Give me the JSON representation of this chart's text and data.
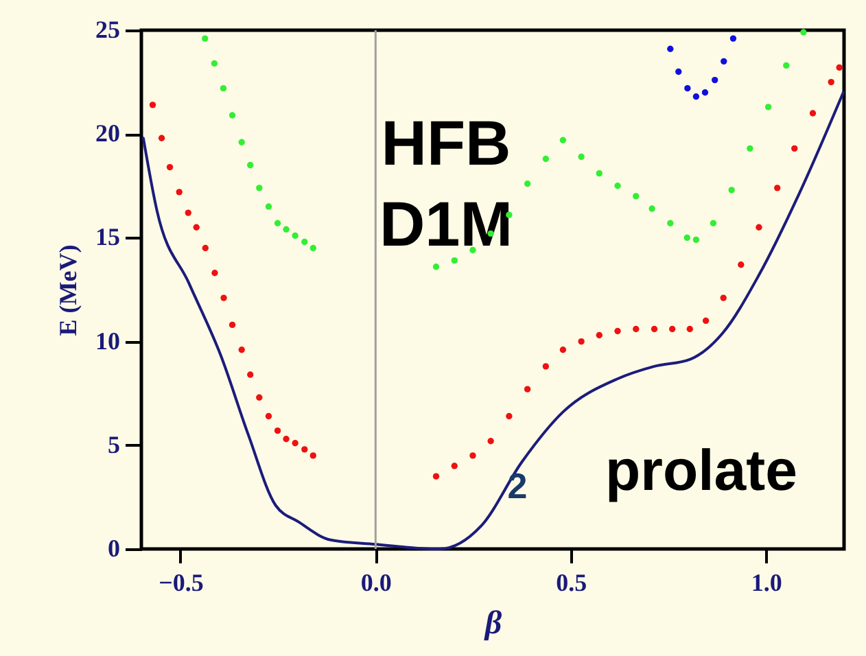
{
  "chart_data": {
    "type": "line",
    "xlabel": "β",
    "ylabel": "E (MeV)",
    "xlim": [
      -0.6,
      1.2
    ],
    "ylim": [
      0,
      25
    ],
    "xticks": [
      -0.5,
      {
        "value": 0,
        "label": "0.0"
      },
      0.5,
      {
        "value": 1,
        "label": "1.0"
      }
    ],
    "yticks": [
      0,
      5,
      10,
      15,
      20,
      25
    ],
    "grid": false,
    "ref_lines": [
      {
        "axis": "x",
        "value": 0,
        "color": "#a0a0a0"
      }
    ],
    "annotations": [
      "HFB",
      "D1M",
      "prolate",
      "2"
    ],
    "series": [
      {
        "color": "#1c1c7c",
        "marker": "none",
        "x": [
          -0.595,
          -0.56,
          -0.478,
          -0.396,
          -0.326,
          -0.256,
          -0.197,
          -0.116,
          0.0,
          0.07,
          0.153,
          0.165,
          0.27,
          0.375,
          0.48,
          0.62,
          0.714,
          0.807,
          0.889,
          0.982,
          1.087,
          1.198
        ],
        "values": [
          19.8,
          16.3,
          12.8,
          9.3,
          5.5,
          2.1,
          1.3,
          0.44,
          0.22,
          0.1,
          0.0,
          0.0,
          1.1,
          4.2,
          6.6,
          8.2,
          8.8,
          9.15,
          10.4,
          13.2,
          17.2,
          22.0
        ]
      },
      {
        "type": "scatter",
        "color": "#ee1111",
        "marker": "circle",
        "x": [
          -0.571,
          -0.548,
          -0.527,
          -0.503,
          -0.48,
          -0.459,
          -0.436,
          -0.412,
          -0.389,
          -0.367,
          -0.343,
          -0.321,
          -0.298,
          -0.274,
          -0.251,
          -0.229,
          -0.206,
          -0.182,
          -0.16,
          0.155,
          0.202,
          0.249,
          0.295,
          0.342,
          0.389,
          0.436,
          0.48,
          0.527,
          0.573,
          0.62,
          0.667,
          0.714,
          0.76,
          0.805,
          0.846,
          0.891,
          0.936,
          0.982,
          1.029,
          1.073,
          1.12,
          1.167,
          1.188
        ],
        "values": [
          21.4,
          19.8,
          18.4,
          17.2,
          16.2,
          15.5,
          14.5,
          13.3,
          12.1,
          10.8,
          9.6,
          8.4,
          7.3,
          6.4,
          5.7,
          5.3,
          5.1,
          4.8,
          4.5,
          3.5,
          4.0,
          4.5,
          5.2,
          6.4,
          7.7,
          8.8,
          9.6,
          10.0,
          10.3,
          10.5,
          10.6,
          10.6,
          10.6,
          10.6,
          11.0,
          12.1,
          13.7,
          15.5,
          17.4,
          19.3,
          21.0,
          22.5,
          23.2
        ]
      },
      {
        "type": "scatter",
        "color": "#33ee33",
        "marker": "circle",
        "x": [
          -0.437,
          -0.413,
          -0.39,
          -0.367,
          -0.343,
          -0.321,
          -0.298,
          -0.274,
          -0.251,
          -0.229,
          -0.206,
          -0.182,
          -0.16,
          0.155,
          0.202,
          0.249,
          0.295,
          0.342,
          0.389,
          0.436,
          0.48,
          0.527,
          0.573,
          0.62,
          0.667,
          0.708,
          0.755,
          0.798,
          0.821,
          0.865,
          0.912,
          0.959,
          1.006,
          1.052,
          1.096
        ],
        "values": [
          24.6,
          23.4,
          22.2,
          20.9,
          19.6,
          18.5,
          17.4,
          16.5,
          15.7,
          15.4,
          15.1,
          14.8,
          14.5,
          13.6,
          13.9,
          14.4,
          15.2,
          16.1,
          17.6,
          18.8,
          19.7,
          18.9,
          18.1,
          17.5,
          17.0,
          16.4,
          15.7,
          15.0,
          14.9,
          15.7,
          17.3,
          19.3,
          21.3,
          23.3,
          24.9
        ]
      },
      {
        "type": "scatter",
        "color": "#1010dd",
        "marker": "circle",
        "x": [
          0.755,
          0.776,
          0.799,
          0.821,
          0.844,
          0.869,
          0.892,
          0.916
        ],
        "values": [
          24.1,
          23.0,
          22.2,
          21.8,
          22.0,
          22.6,
          23.5,
          24.6
        ]
      }
    ]
  }
}
